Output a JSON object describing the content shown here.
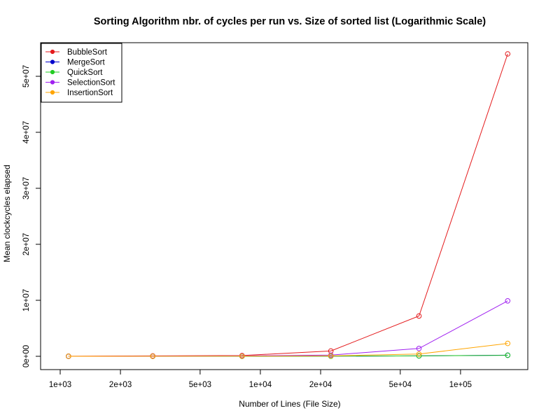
{
  "chart_data": {
    "type": "line",
    "title": "Sorting Algorithm nbr. of cycles per run vs. Size of sorted list (Logarithmic Scale)",
    "xlabel": "Number of Lines (File Size)",
    "ylabel": "Mean clockcycles elapsed",
    "x_scale": "log",
    "x": [
      1100,
      2900,
      8100,
      22500,
      62000,
      172000
    ],
    "xlim": [
      1000,
      200000
    ],
    "ylim": [
      0,
      54000000
    ],
    "x_ticks": [
      {
        "value": 1000,
        "label": "1e+03"
      },
      {
        "value": 2000,
        "label": "2e+03"
      },
      {
        "value": 5000,
        "label": "5e+03"
      },
      {
        "value": 10000,
        "label": "1e+04"
      },
      {
        "value": 20000,
        "label": "2e+04"
      },
      {
        "value": 50000,
        "label": "5e+04"
      },
      {
        "value": 100000,
        "label": "1e+05"
      }
    ],
    "y_ticks": [
      {
        "value": 0,
        "label": "0e+00"
      },
      {
        "value": 10000000,
        "label": "1e+07"
      },
      {
        "value": 20000000,
        "label": "2e+07"
      },
      {
        "value": 30000000,
        "label": "3e+07"
      },
      {
        "value": 40000000,
        "label": "4e+07"
      },
      {
        "value": 50000000,
        "label": "5e+07"
      }
    ],
    "grid": false,
    "legend_position": "top-left",
    "series": [
      {
        "name": "BubbleSort",
        "color": "#e41a1c",
        "values": [
          10000,
          70000,
          140000,
          950000,
          7200000,
          54000000
        ]
      },
      {
        "name": "MergeSort",
        "color": "#0000cc",
        "values": [
          2000,
          5000,
          12000,
          30000,
          80000,
          200000
        ]
      },
      {
        "name": "QuickSort",
        "color": "#22cc22",
        "values": [
          2000,
          4000,
          10000,
          25000,
          70000,
          180000
        ]
      },
      {
        "name": "SelectionSort",
        "color": "#a020f0",
        "values": [
          5000,
          30000,
          70000,
          220000,
          1400000,
          9900000
        ]
      },
      {
        "name": "InsertionSort",
        "color": "#ffa500",
        "values": [
          3000,
          10000,
          30000,
          80000,
          400000,
          2300000
        ]
      }
    ]
  }
}
